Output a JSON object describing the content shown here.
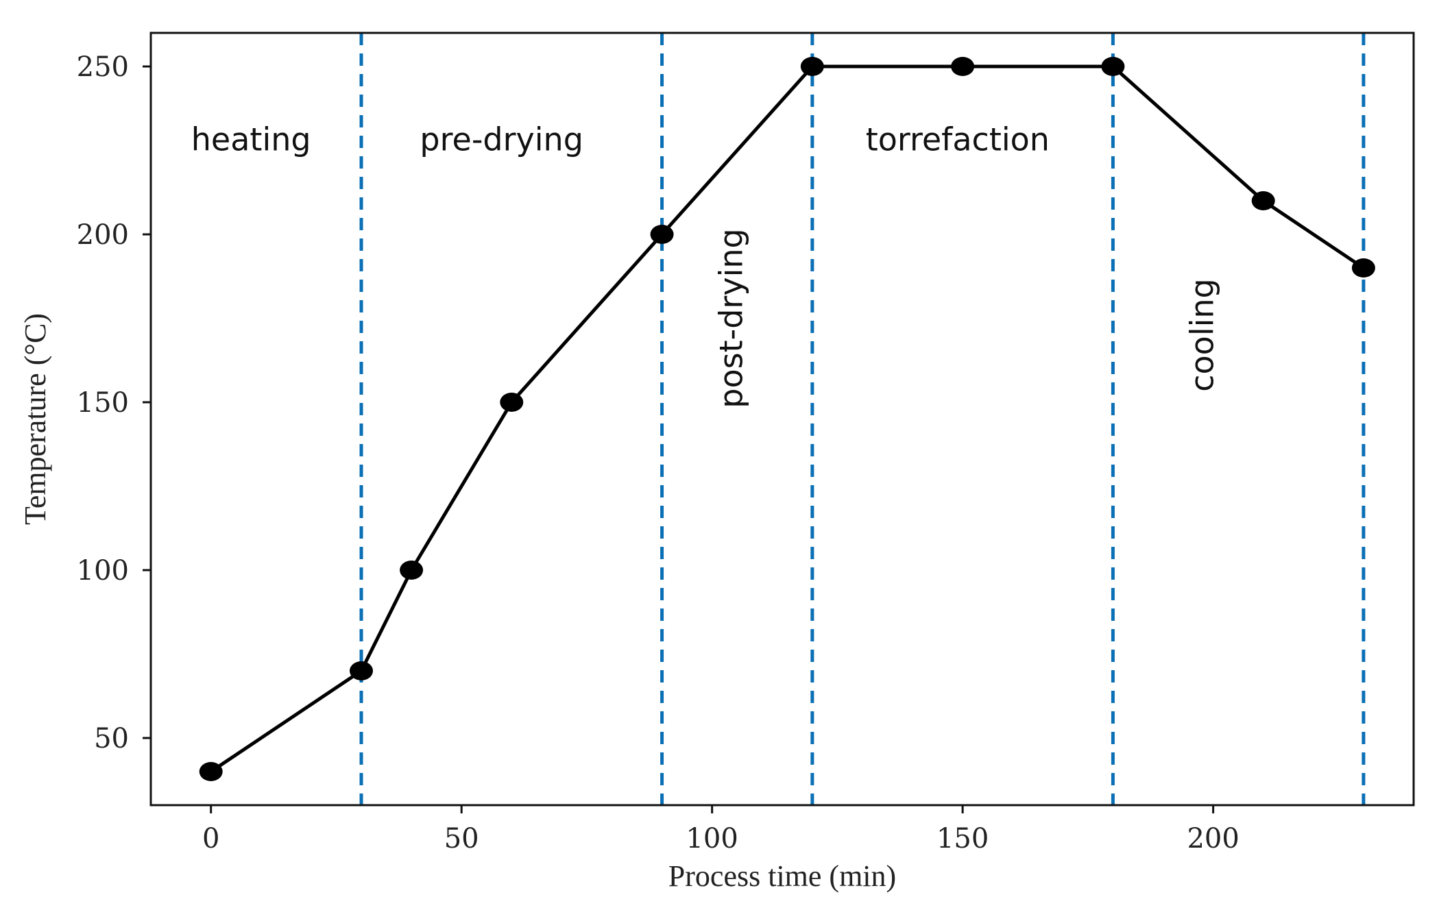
{
  "chart_data": {
    "type": "line",
    "title": "",
    "xlabel": "Process time (min)",
    "ylabel": "Temperature (°C)",
    "xlim": [
      -12,
      240
    ],
    "ylim": [
      30,
      260
    ],
    "xticks": [
      0,
      50,
      100,
      150,
      200
    ],
    "yticks": [
      50,
      100,
      150,
      200,
      250
    ],
    "grid": false,
    "series": [
      {
        "name": "Temperature",
        "color": "#000000",
        "x": [
          0,
          30,
          40,
          60,
          90,
          120,
          150,
          180,
          210,
          230
        ],
        "y": [
          40,
          70,
          100,
          150,
          200,
          250,
          250,
          250,
          210,
          190
        ]
      }
    ],
    "phase_boundaries": [
      30,
      90,
      120,
      180,
      230
    ],
    "boundary_color": "#0a6fb5",
    "phases": [
      {
        "label": "heating",
        "x": 8,
        "y": 225,
        "rotated": false
      },
      {
        "label": "pre-drying",
        "x": 58,
        "y": 225,
        "rotated": false
      },
      {
        "label": "post-drying",
        "x": 106,
        "y": 175,
        "rotated": true
      },
      {
        "label": "torrefaction",
        "x": 149,
        "y": 225,
        "rotated": false
      },
      {
        "label": "cooling",
        "x": 200,
        "y": 170,
        "rotated": true
      }
    ]
  }
}
